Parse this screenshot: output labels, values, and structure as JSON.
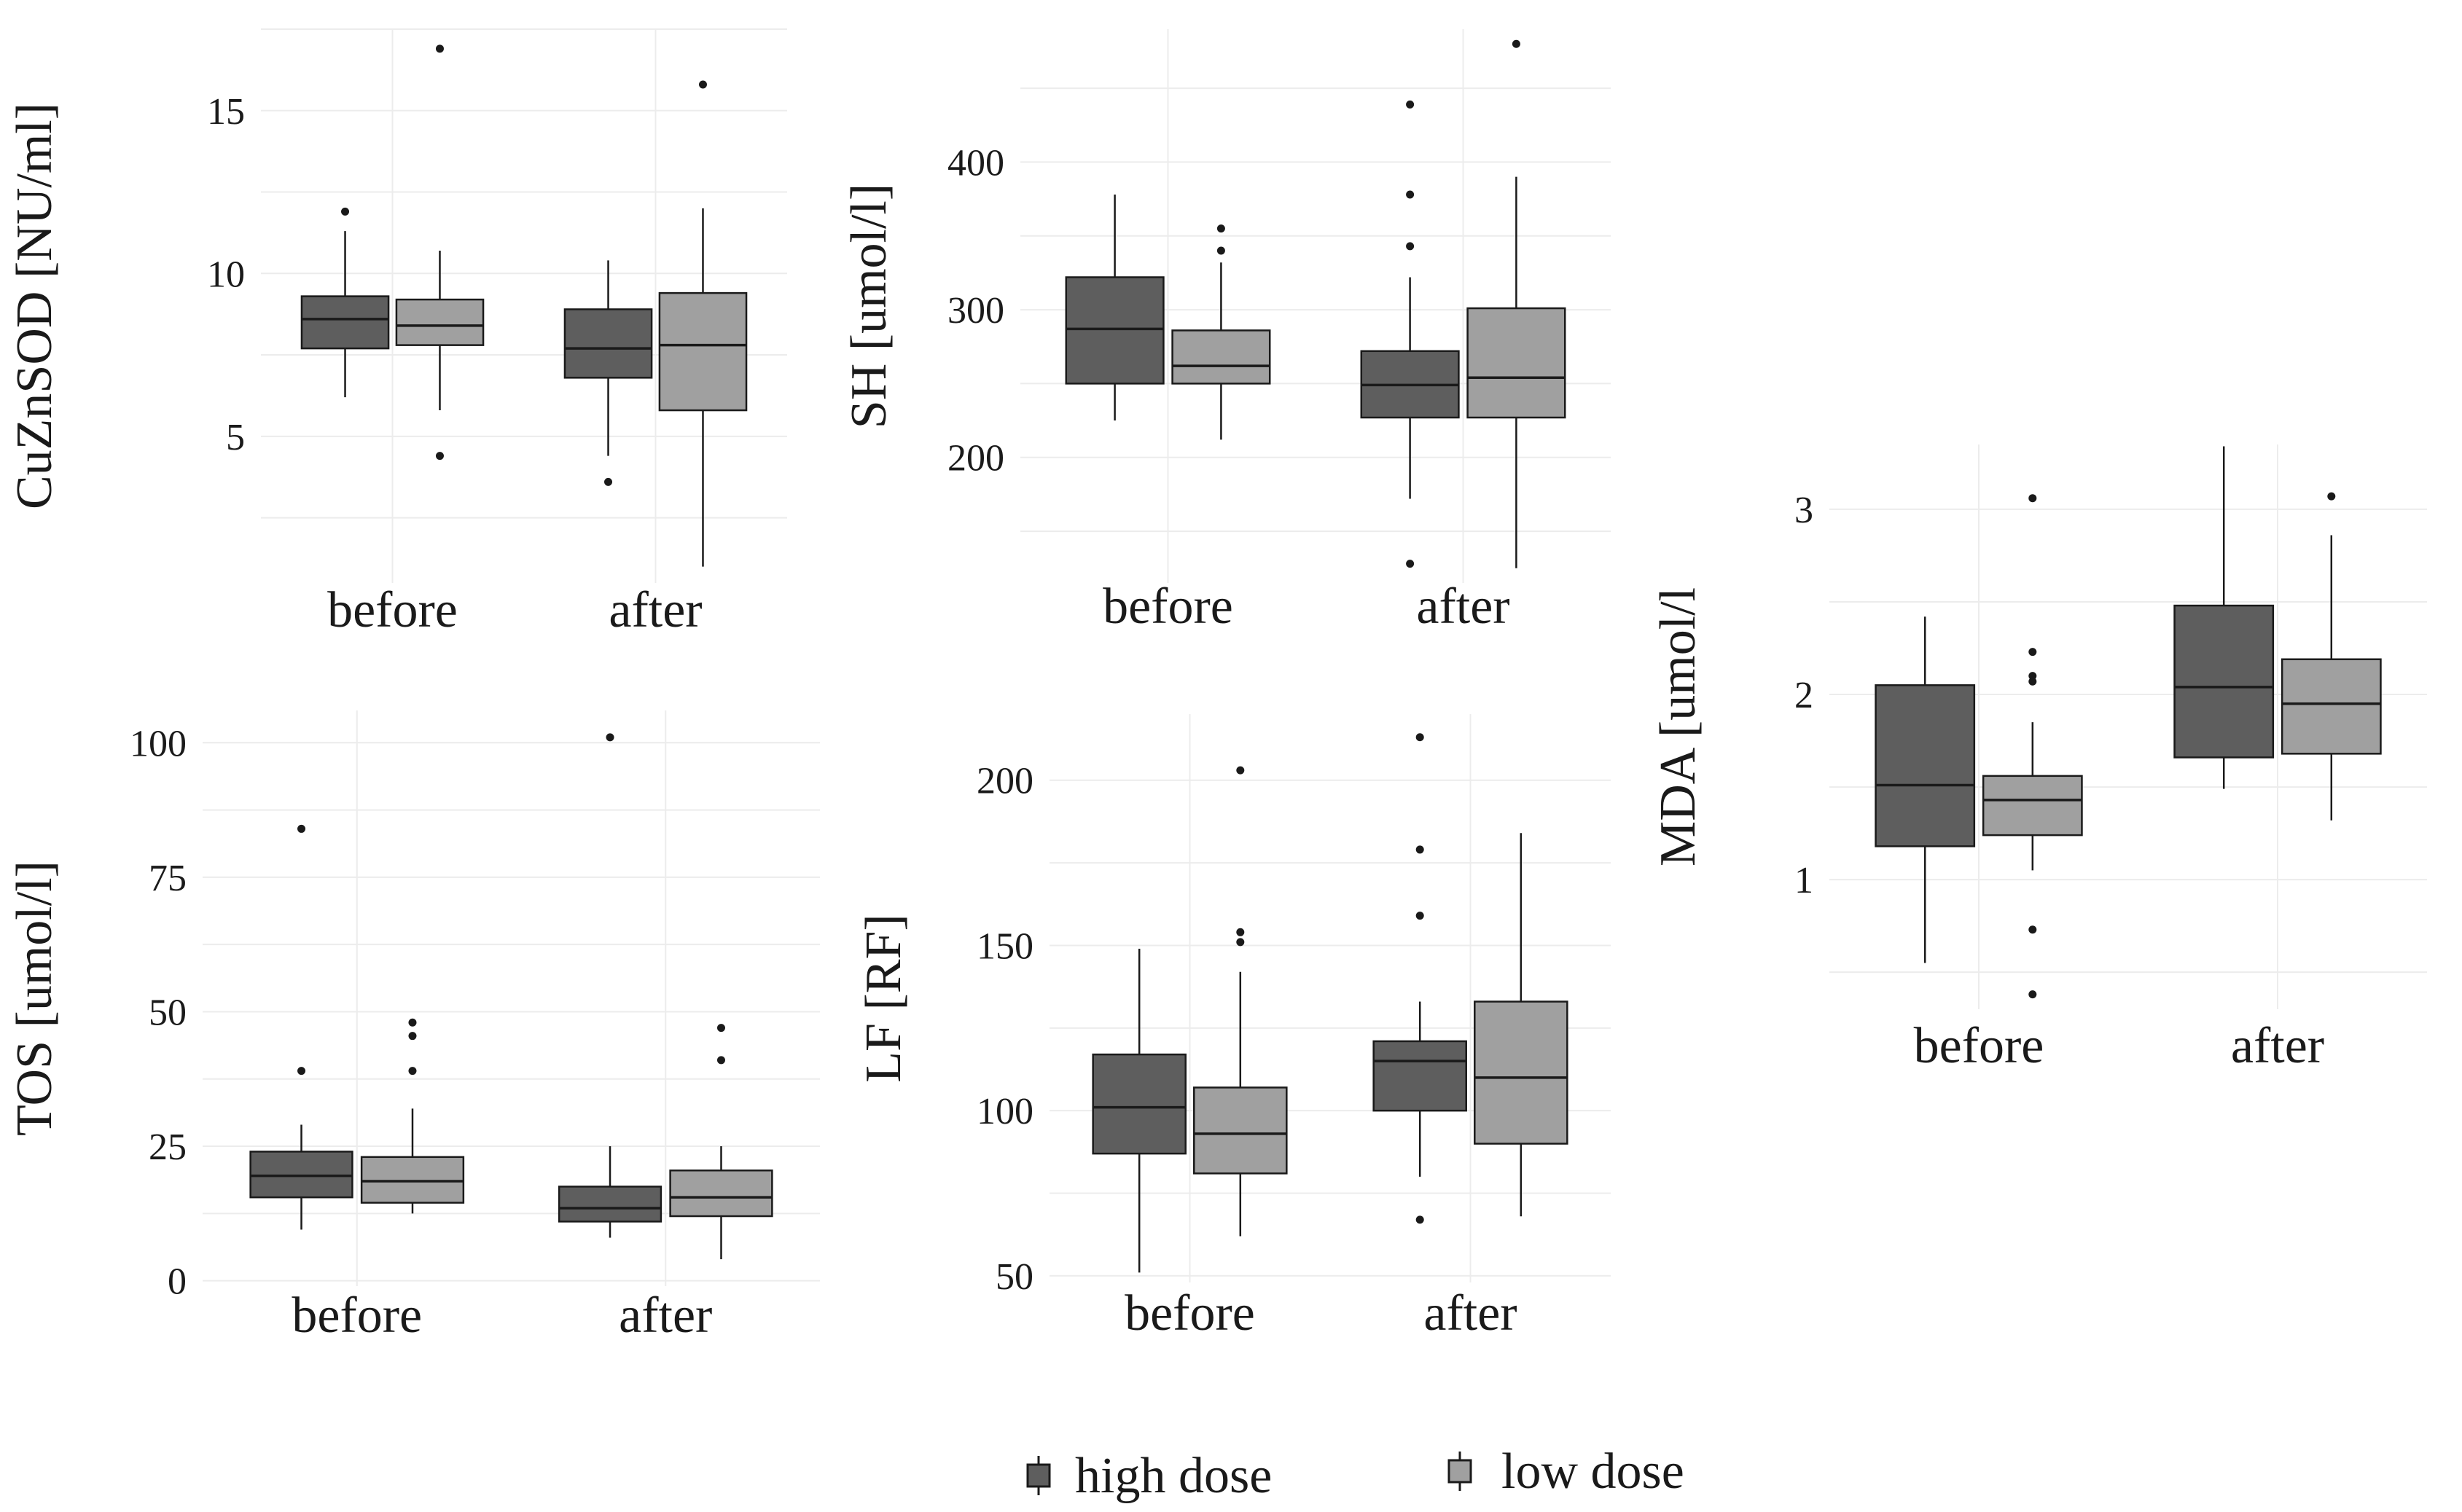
{
  "legend": {
    "items": [
      {
        "label": "high dose",
        "color": "#5e5e5e"
      },
      {
        "label": "low dose",
        "color": "#a0a0a0"
      }
    ]
  },
  "colors": {
    "high_dose": "#5e5e5e",
    "low_dose": "#a0a0a0",
    "grid": "#ececec",
    "line": "#1a1a1a"
  },
  "chart_data": [
    {
      "id": "cuznsod",
      "type": "boxplot",
      "ylabel": "CuZnSOD [NU/ml]",
      "categories": [
        "before",
        "after"
      ],
      "ylim": [
        0.5,
        17.5
      ],
      "yticks": [
        5,
        10,
        15
      ],
      "groups": [
        "high dose",
        "low dose"
      ],
      "boxes": [
        {
          "category": "before",
          "group": "high dose",
          "min": 6.2,
          "q1": 7.7,
          "median": 8.6,
          "q3": 9.3,
          "max": 11.3,
          "outliers": [
            11.9
          ]
        },
        {
          "category": "before",
          "group": "low dose",
          "min": 5.8,
          "q1": 7.8,
          "median": 8.4,
          "q3": 9.2,
          "max": 10.7,
          "outliers": [
            4.4,
            16.9
          ]
        },
        {
          "category": "after",
          "group": "high dose",
          "min": 4.4,
          "q1": 6.8,
          "median": 7.7,
          "q3": 8.9,
          "max": 10.4,
          "outliers": [
            3.6
          ]
        },
        {
          "category": "after",
          "group": "low dose",
          "min": 1.0,
          "q1": 5.8,
          "median": 7.8,
          "q3": 9.4,
          "max": 12.0,
          "outliers": [
            15.8
          ]
        }
      ]
    },
    {
      "id": "sh",
      "type": "boxplot",
      "ylabel": "SH [umol/l]",
      "categories": [
        "before",
        "after"
      ],
      "ylim": [
        115,
        490
      ],
      "yticks": [
        200,
        300,
        400
      ],
      "groups": [
        "high dose",
        "low dose"
      ],
      "boxes": [
        {
          "category": "before",
          "group": "high dose",
          "min": 225,
          "q1": 250,
          "median": 287,
          "q3": 322,
          "max": 378,
          "outliers": []
        },
        {
          "category": "before",
          "group": "low dose",
          "min": 212,
          "q1": 250,
          "median": 262,
          "q3": 286,
          "max": 332,
          "outliers": [
            340,
            355
          ]
        },
        {
          "category": "after",
          "group": "high dose",
          "min": 172,
          "q1": 227,
          "median": 249,
          "q3": 272,
          "max": 322,
          "outliers": [
            128,
            343,
            378,
            439
          ]
        },
        {
          "category": "after",
          "group": "low dose",
          "min": 125,
          "q1": 227,
          "median": 254,
          "q3": 301,
          "max": 390,
          "outliers": [
            480
          ]
        }
      ]
    },
    {
      "id": "mda",
      "type": "boxplot",
      "ylabel": "MDA [umol/l",
      "categories": [
        "before",
        "after"
      ],
      "ylim": [
        0.3,
        3.35
      ],
      "yticks": [
        1,
        2,
        3
      ],
      "groups": [
        "high dose",
        "low dose"
      ],
      "boxes": [
        {
          "category": "before",
          "group": "high dose",
          "min": 0.55,
          "q1": 1.18,
          "median": 1.51,
          "q3": 2.05,
          "max": 2.42,
          "outliers": []
        },
        {
          "category": "before",
          "group": "low dose",
          "min": 1.05,
          "q1": 1.24,
          "median": 1.43,
          "q3": 1.56,
          "max": 1.85,
          "outliers": [
            0.38,
            0.73,
            2.07,
            2.1,
            2.23,
            3.06
          ]
        },
        {
          "category": "after",
          "group": "high dose",
          "min": 1.49,
          "q1": 1.66,
          "median": 2.04,
          "q3": 2.48,
          "max": 3.34,
          "outliers": []
        },
        {
          "category": "after",
          "group": "low dose",
          "min": 1.32,
          "q1": 1.68,
          "median": 1.95,
          "q3": 2.19,
          "max": 2.86,
          "outliers": [
            3.07
          ]
        }
      ]
    },
    {
      "id": "tos",
      "type": "boxplot",
      "ylabel": "TOS [umol/l]",
      "categories": [
        "before",
        "after"
      ],
      "ylim": [
        -1,
        106
      ],
      "yticks": [
        0,
        25,
        50,
        75,
        100
      ],
      "groups": [
        "high dose",
        "low dose"
      ],
      "boxes": [
        {
          "category": "before",
          "group": "high dose",
          "min": 9.5,
          "q1": 15.5,
          "median": 19.5,
          "q3": 24,
          "max": 29,
          "outliers": [
            39,
            84
          ]
        },
        {
          "category": "before",
          "group": "low dose",
          "min": 12.5,
          "q1": 14.5,
          "median": 18.5,
          "q3": 23,
          "max": 32,
          "outliers": [
            39,
            45.5,
            48
          ]
        },
        {
          "category": "after",
          "group": "high dose",
          "min": 8,
          "q1": 11,
          "median": 13.5,
          "q3": 17.5,
          "max": 25,
          "outliers": [
            101
          ]
        },
        {
          "category": "after",
          "group": "low dose",
          "min": 4,
          "q1": 12,
          "median": 15.5,
          "q3": 20.5,
          "max": 25,
          "outliers": [
            41,
            47
          ]
        }
      ]
    },
    {
      "id": "lf",
      "type": "boxplot",
      "ylabel": "LF [RF]",
      "categories": [
        "before",
        "after"
      ],
      "ylim": [
        48,
        220
      ],
      "yticks": [
        50,
        100,
        150,
        200
      ],
      "groups": [
        "high dose",
        "low dose"
      ],
      "boxes": [
        {
          "category": "before",
          "group": "high dose",
          "min": 51,
          "q1": 87,
          "median": 101,
          "q3": 117,
          "max": 149,
          "outliers": []
        },
        {
          "category": "before",
          "group": "low dose",
          "min": 62,
          "q1": 81,
          "median": 93,
          "q3": 107,
          "max": 142,
          "outliers": [
            151,
            154,
            203
          ]
        },
        {
          "category": "after",
          "group": "high dose",
          "min": 80,
          "q1": 100,
          "median": 115,
          "q3": 121,
          "max": 133,
          "outliers": [
            67,
            159,
            179,
            213
          ]
        },
        {
          "category": "after",
          "group": "low dose",
          "min": 68,
          "q1": 90,
          "median": 110,
          "q3": 133,
          "max": 184,
          "outliers": []
        }
      ]
    }
  ]
}
